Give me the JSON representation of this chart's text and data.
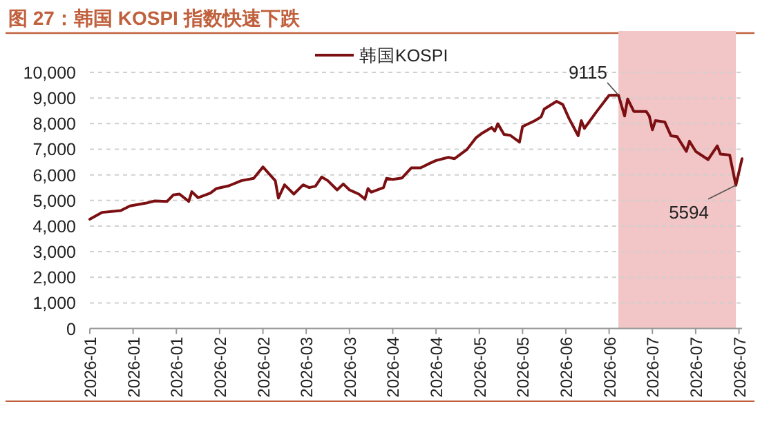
{
  "chart_data": {
    "type": "line",
    "title": "图 27：韩国 KOSPI 指数快速下跌",
    "x": [
      "2026-01-01",
      "2026-01-05",
      "2026-01-11",
      "2026-01-14",
      "2026-01-19",
      "2026-01-22",
      "2026-01-26",
      "2026-01-28",
      "2026-01-30",
      "2026-02-02",
      "2026-02-03",
      "2026-02-05",
      "2026-02-09",
      "2026-02-11",
      "2026-02-15",
      "2026-02-19",
      "2026-02-23",
      "2026-02-26",
      "2026-03-02",
      "2026-03-03",
      "2026-03-05",
      "2026-03-08",
      "2026-03-11",
      "2026-03-13",
      "2026-03-15",
      "2026-03-17",
      "2026-03-19",
      "2026-03-22",
      "2026-03-24",
      "2026-03-26",
      "2026-03-29",
      "2026-03-31",
      "2026-04-01",
      "2026-04-02",
      "2026-04-06",
      "2026-04-07",
      "2026-04-09",
      "2026-04-12",
      "2026-04-15",
      "2026-04-18",
      "2026-04-21",
      "2026-04-23",
      "2026-04-27",
      "2026-04-29",
      "2026-05-03",
      "2026-05-06",
      "2026-05-08",
      "2026-05-11",
      "2026-05-12",
      "2026-05-13",
      "2026-05-15",
      "2026-05-17",
      "2026-05-20",
      "2026-05-21",
      "2026-05-25",
      "2026-05-27",
      "2026-05-28",
      "2026-06-01",
      "2026-06-03",
      "2026-06-05",
      "2026-06-08",
      "2026-06-09",
      "2026-06-10",
      "2026-06-14",
      "2026-06-18",
      "2026-06-21",
      "2026-06-23",
      "2026-06-24",
      "2026-06-26",
      "2026-06-30",
      "2026-07-01",
      "2026-07-02",
      "2026-07-03",
      "2026-07-06",
      "2026-07-08",
      "2026-07-10",
      "2026-07-13",
      "2026-07-14",
      "2026-07-16",
      "2026-07-20",
      "2026-07-23",
      "2026-07-24",
      "2026-07-27",
      "2026-07-29",
      "2026-07-31"
    ],
    "series": [
      {
        "name": "韩国KOSPI",
        "color": "#7b0f12",
        "values": [
          4265,
          4534,
          4606,
          4785,
          4892,
          4982,
          4964,
          5215,
          5251,
          4964,
          5340,
          5108,
          5287,
          5466,
          5573,
          5771,
          5860,
          6308,
          5771,
          5090,
          5609,
          5251,
          5609,
          5502,
          5556,
          5914,
          5771,
          5412,
          5645,
          5412,
          5251,
          5054,
          5466,
          5323,
          5502,
          5860,
          5824,
          5878,
          6272,
          6272,
          6451,
          6559,
          6684,
          6630,
          6989,
          7455,
          7634,
          7849,
          7706,
          7992,
          7580,
          7544,
          7276,
          7885,
          8118,
          8261,
          8566,
          8870,
          8745,
          8208,
          7526,
          8118,
          7813,
          8476,
          9103,
          9115,
          8297,
          8960,
          8476,
          8476,
          8297,
          7760,
          8118,
          8064,
          7526,
          7490,
          6917,
          7311,
          6917,
          6595,
          7132,
          6810,
          6774,
          5594,
          6630
        ]
      }
    ],
    "xlim": [
      "2026-01-01",
      "2026-07-31"
    ],
    "xticks": [
      {
        "value": "2026-01-01",
        "label": "2026-01"
      },
      {
        "value": "2026-01-15",
        "label": "2026-01"
      },
      {
        "value": "2026-01-29",
        "label": "2026-01"
      },
      {
        "value": "2026-02-12",
        "label": "2026-02"
      },
      {
        "value": "2026-02-26",
        "label": "2026-02"
      },
      {
        "value": "2026-03-12",
        "label": "2026-03"
      },
      {
        "value": "2026-03-26",
        "label": "2026-03"
      },
      {
        "value": "2026-04-09",
        "label": "2026-04"
      },
      {
        "value": "2026-04-23",
        "label": "2026-04"
      },
      {
        "value": "2026-05-07",
        "label": "2026-05"
      },
      {
        "value": "2026-05-21",
        "label": "2026-05"
      },
      {
        "value": "2026-06-04",
        "label": "2026-06"
      },
      {
        "value": "2026-06-18",
        "label": "2026-06"
      },
      {
        "value": "2026-07-02",
        "label": "2026-07"
      },
      {
        "value": "2026-07-16",
        "label": "2026-07"
      },
      {
        "value": "2026-07-30",
        "label": "2026-07"
      }
    ],
    "ylim": [
      0,
      10000
    ],
    "yticks": [
      0,
      {
        "value": 1000,
        "label": "1,000"
      },
      {
        "value": 2000,
        "label": "2,000"
      },
      {
        "value": 3000,
        "label": "3,000"
      },
      {
        "value": 4000,
        "label": "4,000"
      },
      {
        "value": 5000,
        "label": "5,000"
      },
      {
        "value": 6000,
        "label": "6,000"
      },
      {
        "value": 7000,
        "label": "7,000"
      },
      {
        "value": 8000,
        "label": "8,000"
      },
      {
        "value": 9000,
        "label": "9,000"
      },
      {
        "value": 10000,
        "label": "10,000"
      }
    ],
    "grid": "y",
    "legend": "top",
    "line_style": "solid",
    "marker": "none",
    "bands": [
      {
        "axis": "x",
        "from": "2026-06-21",
        "to": "2026-07-29",
        "color": "#f2c5c7"
      }
    ],
    "annotations": [
      {
        "text": "9115",
        "x": "2026-06-21",
        "y": 9115
      },
      {
        "text": "5594",
        "x": "2026-07-29",
        "y": 5594
      }
    ]
  }
}
